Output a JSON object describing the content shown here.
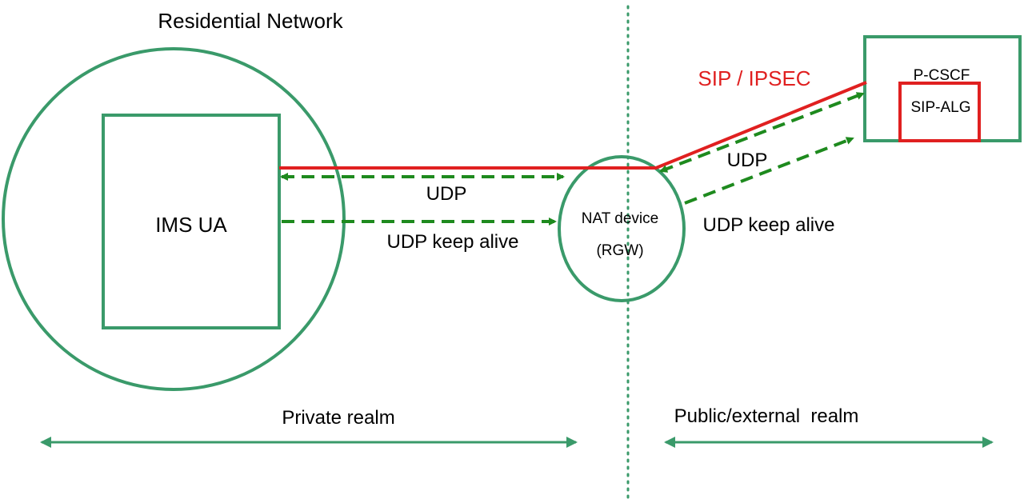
{
  "labels": {
    "residential_network": "Residential Network",
    "ims_ua": "IMS UA",
    "nat_line1": "NAT device",
    "nat_line2": "(RGW)",
    "pcscf": "P-CSCF",
    "sip_alg": "SIP-ALG",
    "sip_ipsec": "SIP / IPSEC",
    "udp_left": "UDP",
    "udp_keepalive_left": "UDP keep alive",
    "udp_right": "UDP",
    "udp_keepalive_right": "UDP keep alive",
    "private_realm": "Private realm",
    "public_realm": "Public/external  realm"
  },
  "colors": {
    "green": "#3a9a6a",
    "dashed_green": "#1e8a1e",
    "red": "#e02020",
    "divider": "#3a9a6a"
  }
}
